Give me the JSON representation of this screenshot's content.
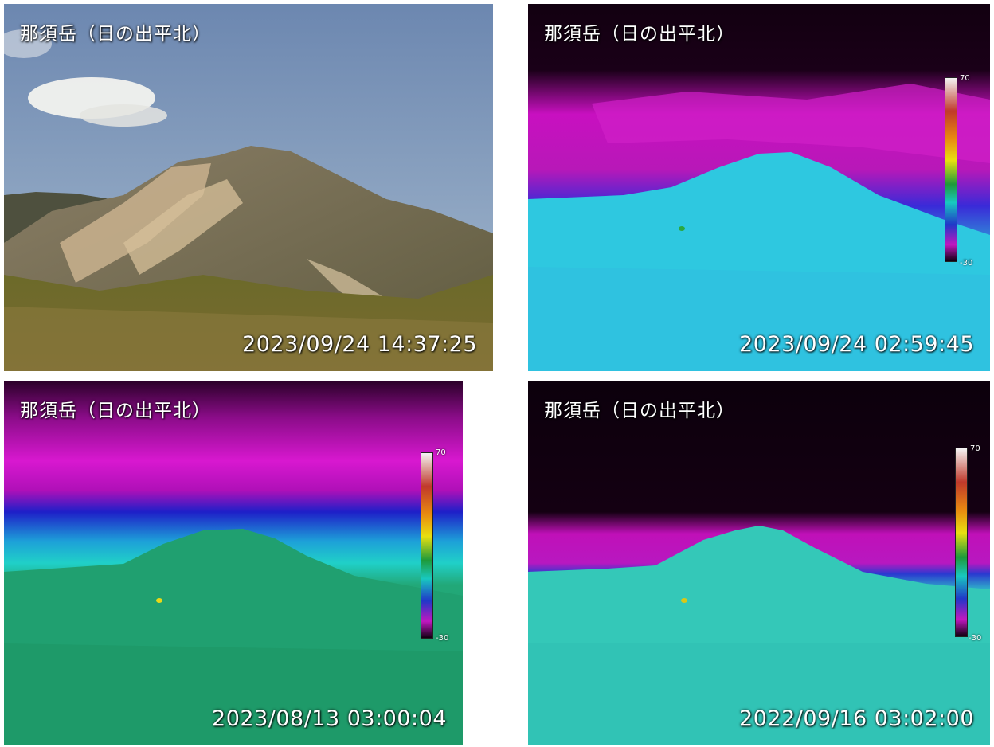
{
  "panels": [
    {
      "title": "那須岳（日の出平北）",
      "timestamp": "2023/09/24 14:37:25",
      "mode": "visible"
    },
    {
      "title": "那須岳（日の出平北）",
      "timestamp": "2023/09/24 02:59:45",
      "mode": "thermal",
      "scale_max": "70",
      "scale_min": "-30"
    },
    {
      "title": "那須岳（日の出平北）",
      "timestamp": "2023/08/13 03:00:04",
      "mode": "thermal",
      "scale_max": "70",
      "scale_min": "-30"
    },
    {
      "title": "那須岳（日の出平北）",
      "timestamp": "2022/09/16 03:02:00",
      "mode": "thermal",
      "scale_max": "70",
      "scale_min": "-30"
    }
  ]
}
